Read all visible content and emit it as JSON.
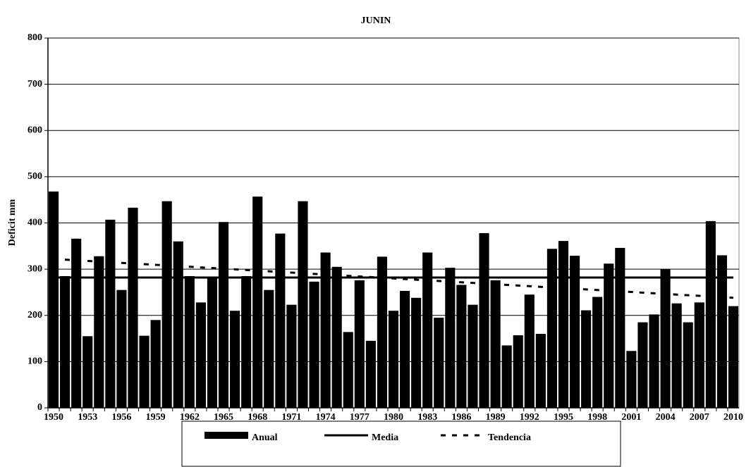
{
  "chart_data": {
    "type": "bar",
    "title": "JUNIN",
    "y_label": "Deficit mm",
    "categories": [
      "1950",
      null,
      null,
      "1953",
      null,
      null,
      "1956",
      null,
      null,
      "1959",
      null,
      null,
      "1962",
      null,
      null,
      "1965",
      null,
      null,
      "1968",
      null,
      null,
      "1971",
      null,
      null,
      "1974",
      null,
      null,
      "1977",
      null,
      null,
      "1980",
      null,
      null,
      "1983",
      null,
      null,
      "1986",
      null,
      null,
      "1989",
      null,
      null,
      "1992",
      null,
      null,
      "1995",
      null,
      null,
      "1998",
      null,
      null,
      "2001",
      null,
      null,
      "2004",
      null,
      null,
      "2007",
      null,
      null,
      "2010"
    ],
    "series": [
      {
        "name": "Anual",
        "type": "bar",
        "color": "#000000",
        "values": [
          468,
          285,
          366,
          155,
          328,
          407,
          255,
          433,
          156,
          190,
          447,
          360,
          285,
          228,
          284,
          402,
          210,
          285,
          457,
          255,
          377,
          223,
          447,
          273,
          336,
          305,
          164,
          276,
          145,
          327,
          210,
          253,
          238,
          336,
          195,
          303,
          266,
          223,
          378,
          276,
          135,
          157,
          245,
          160,
          344,
          361,
          329,
          211,
          240,
          312,
          346,
          123,
          185,
          202,
          300,
          226,
          185,
          228,
          404,
          330,
          220
        ]
      },
      {
        "name": "Media",
        "type": "line",
        "color": "#000000",
        "values": [
          282,
          282,
          282,
          282,
          282,
          282,
          282,
          282,
          282,
          282,
          282,
          282,
          282,
          282,
          282,
          282,
          282,
          282,
          282,
          282,
          282,
          282,
          282,
          282,
          282,
          282,
          282,
          282,
          282,
          282,
          282,
          282,
          282,
          282,
          282,
          282,
          282,
          282,
          282,
          282,
          282,
          282,
          282,
          282,
          282,
          282,
          282,
          282,
          282,
          282,
          282,
          282,
          282,
          282,
          282,
          282,
          282,
          282,
          282,
          282,
          282
        ]
      },
      {
        "name": "Tendencia",
        "type": "dashed",
        "color": "#000000",
        "values": [
          322,
          320.6,
          319.2,
          317.8,
          316.4,
          315,
          313.6,
          312.2,
          310.8,
          309.4,
          308,
          306.6,
          305.2,
          303.8,
          302.4,
          301,
          299.6,
          298.2,
          296.8,
          295.4,
          294,
          292.6,
          291.2,
          289.8,
          288.4,
          287,
          285.6,
          284.2,
          282.8,
          281.4,
          280,
          278.6,
          277.2,
          275.8,
          274.4,
          273,
          271.6,
          270.2,
          268.8,
          267.4,
          266,
          264.6,
          263.2,
          261.8,
          260.4,
          259,
          257.6,
          256.2,
          254.8,
          253.4,
          252,
          250.6,
          249.2,
          247.8,
          246.4,
          245,
          243.6,
          242.2,
          240.8,
          239.4,
          238
        ]
      }
    ],
    "ylim": [
      0,
      800
    ],
    "yticks": [
      0,
      100,
      200,
      300,
      400,
      500,
      600,
      700,
      800
    ],
    "grid": true
  }
}
